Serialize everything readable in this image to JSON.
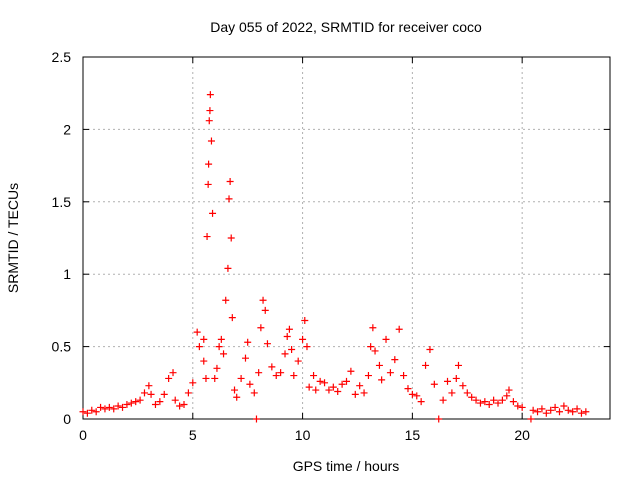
{
  "chart_data": {
    "type": "scatter",
    "title": "Day 055 of 2022, SRMTID for receiver coco",
    "xlabel": "GPS time / hours",
    "ylabel": "SRMTID / TECUs",
    "xlim": [
      0,
      24
    ],
    "ylim": [
      0,
      2.5
    ],
    "x_ticks": [
      0,
      5,
      10,
      15,
      20
    ],
    "x_tick_labels": [
      "0",
      "5",
      "10",
      "15",
      "20"
    ],
    "y_ticks": [
      0,
      0.5,
      1,
      1.5,
      2,
      2.5
    ],
    "y_tick_labels": [
      "0",
      "0.5",
      "1",
      "1.5",
      "2",
      "2.5"
    ],
    "grid": true,
    "marker": "+",
    "series": [
      {
        "name": "SRMTID",
        "color": "#ff0000",
        "points": [
          [
            0.0,
            0.05
          ],
          [
            0.2,
            0.04
          ],
          [
            0.4,
            0.06
          ],
          [
            0.6,
            0.05
          ],
          [
            0.8,
            0.08
          ],
          [
            1.0,
            0.07
          ],
          [
            1.2,
            0.08
          ],
          [
            1.4,
            0.07
          ],
          [
            1.6,
            0.09
          ],
          [
            1.8,
            0.08
          ],
          [
            2.0,
            0.1
          ],
          [
            2.2,
            0.11
          ],
          [
            2.4,
            0.12
          ],
          [
            2.6,
            0.13
          ],
          [
            2.8,
            0.18
          ],
          [
            3.0,
            0.23
          ],
          [
            3.1,
            0.17
          ],
          [
            3.3,
            0.1
          ],
          [
            3.5,
            0.12
          ],
          [
            3.7,
            0.17
          ],
          [
            3.9,
            0.28
          ],
          [
            4.1,
            0.32
          ],
          [
            4.2,
            0.13
          ],
          [
            4.4,
            0.09
          ],
          [
            4.6,
            0.1
          ],
          [
            4.8,
            0.18
          ],
          [
            5.0,
            0.25
          ],
          [
            5.2,
            0.6
          ],
          [
            5.3,
            0.5
          ],
          [
            5.5,
            0.4
          ],
          [
            5.5,
            0.55
          ],
          [
            5.6,
            0.28
          ],
          [
            5.65,
            1.26
          ],
          [
            5.7,
            1.62
          ],
          [
            5.72,
            1.76
          ],
          [
            5.75,
            2.06
          ],
          [
            5.78,
            2.13
          ],
          [
            5.8,
            2.24
          ],
          [
            5.85,
            1.92
          ],
          [
            5.9,
            1.42
          ],
          [
            6.0,
            0.28
          ],
          [
            6.1,
            0.35
          ],
          [
            6.2,
            0.5
          ],
          [
            6.3,
            0.55
          ],
          [
            6.4,
            0.45
          ],
          [
            6.5,
            0.82
          ],
          [
            6.6,
            1.04
          ],
          [
            6.65,
            1.52
          ],
          [
            6.7,
            1.64
          ],
          [
            6.75,
            1.25
          ],
          [
            6.8,
            0.7
          ],
          [
            6.9,
            0.2
          ],
          [
            7.0,
            0.15
          ],
          [
            7.2,
            0.28
          ],
          [
            7.4,
            0.42
          ],
          [
            7.5,
            0.53
          ],
          [
            7.6,
            0.24
          ],
          [
            7.8,
            0.18
          ],
          [
            7.9,
            0.0
          ],
          [
            8.0,
            0.32
          ],
          [
            8.1,
            0.63
          ],
          [
            8.2,
            0.82
          ],
          [
            8.3,
            0.75
          ],
          [
            8.4,
            0.52
          ],
          [
            8.6,
            0.36
          ],
          [
            8.8,
            0.3
          ],
          [
            9.0,
            0.32
          ],
          [
            9.2,
            0.45
          ],
          [
            9.3,
            0.57
          ],
          [
            9.4,
            0.62
          ],
          [
            9.5,
            0.48
          ],
          [
            9.6,
            0.3
          ],
          [
            9.8,
            0.4
          ],
          [
            10.0,
            0.55
          ],
          [
            10.1,
            0.68
          ],
          [
            10.2,
            0.5
          ],
          [
            10.3,
            0.22
          ],
          [
            10.5,
            0.3
          ],
          [
            10.6,
            0.2
          ],
          [
            10.8,
            0.26
          ],
          [
            11.0,
            0.25
          ],
          [
            11.2,
            0.2
          ],
          [
            11.4,
            0.22
          ],
          [
            11.6,
            0.19
          ],
          [
            11.8,
            0.24
          ],
          [
            12.0,
            0.26
          ],
          [
            12.2,
            0.33
          ],
          [
            12.4,
            0.17
          ],
          [
            12.6,
            0.23
          ],
          [
            12.8,
            0.18
          ],
          [
            13.0,
            0.3
          ],
          [
            13.1,
            0.5
          ],
          [
            13.2,
            0.63
          ],
          [
            13.3,
            0.47
          ],
          [
            13.5,
            0.37
          ],
          [
            13.6,
            0.27
          ],
          [
            13.8,
            0.55
          ],
          [
            14.0,
            0.32
          ],
          [
            14.2,
            0.41
          ],
          [
            14.4,
            0.62
          ],
          [
            14.6,
            0.3
          ],
          [
            14.8,
            0.21
          ],
          [
            15.0,
            0.17
          ],
          [
            15.2,
            0.16
          ],
          [
            15.4,
            0.12
          ],
          [
            15.6,
            0.37
          ],
          [
            15.8,
            0.48
          ],
          [
            16.0,
            0.24
          ],
          [
            16.2,
            0.0
          ],
          [
            16.4,
            0.13
          ],
          [
            16.6,
            0.26
          ],
          [
            16.8,
            0.18
          ],
          [
            17.0,
            0.28
          ],
          [
            17.1,
            0.37
          ],
          [
            17.3,
            0.23
          ],
          [
            17.5,
            0.18
          ],
          [
            17.7,
            0.15
          ],
          [
            17.9,
            0.13
          ],
          [
            18.1,
            0.11
          ],
          [
            18.3,
            0.12
          ],
          [
            18.5,
            0.1
          ],
          [
            18.7,
            0.13
          ],
          [
            18.9,
            0.11
          ],
          [
            19.1,
            0.13
          ],
          [
            19.3,
            0.16
          ],
          [
            19.4,
            0.2
          ],
          [
            19.6,
            0.12
          ],
          [
            19.8,
            0.09
          ],
          [
            20.0,
            0.08
          ],
          [
            20.4,
            0.0
          ],
          [
            20.5,
            0.06
          ],
          [
            20.7,
            0.05
          ],
          [
            20.9,
            0.07
          ],
          [
            21.1,
            0.04
          ],
          [
            21.3,
            0.06
          ],
          [
            21.5,
            0.08
          ],
          [
            21.7,
            0.05
          ],
          [
            21.9,
            0.09
          ],
          [
            22.1,
            0.06
          ],
          [
            22.3,
            0.05
          ],
          [
            22.5,
            0.07
          ],
          [
            22.7,
            0.04
          ],
          [
            22.9,
            0.05
          ]
        ]
      }
    ]
  }
}
